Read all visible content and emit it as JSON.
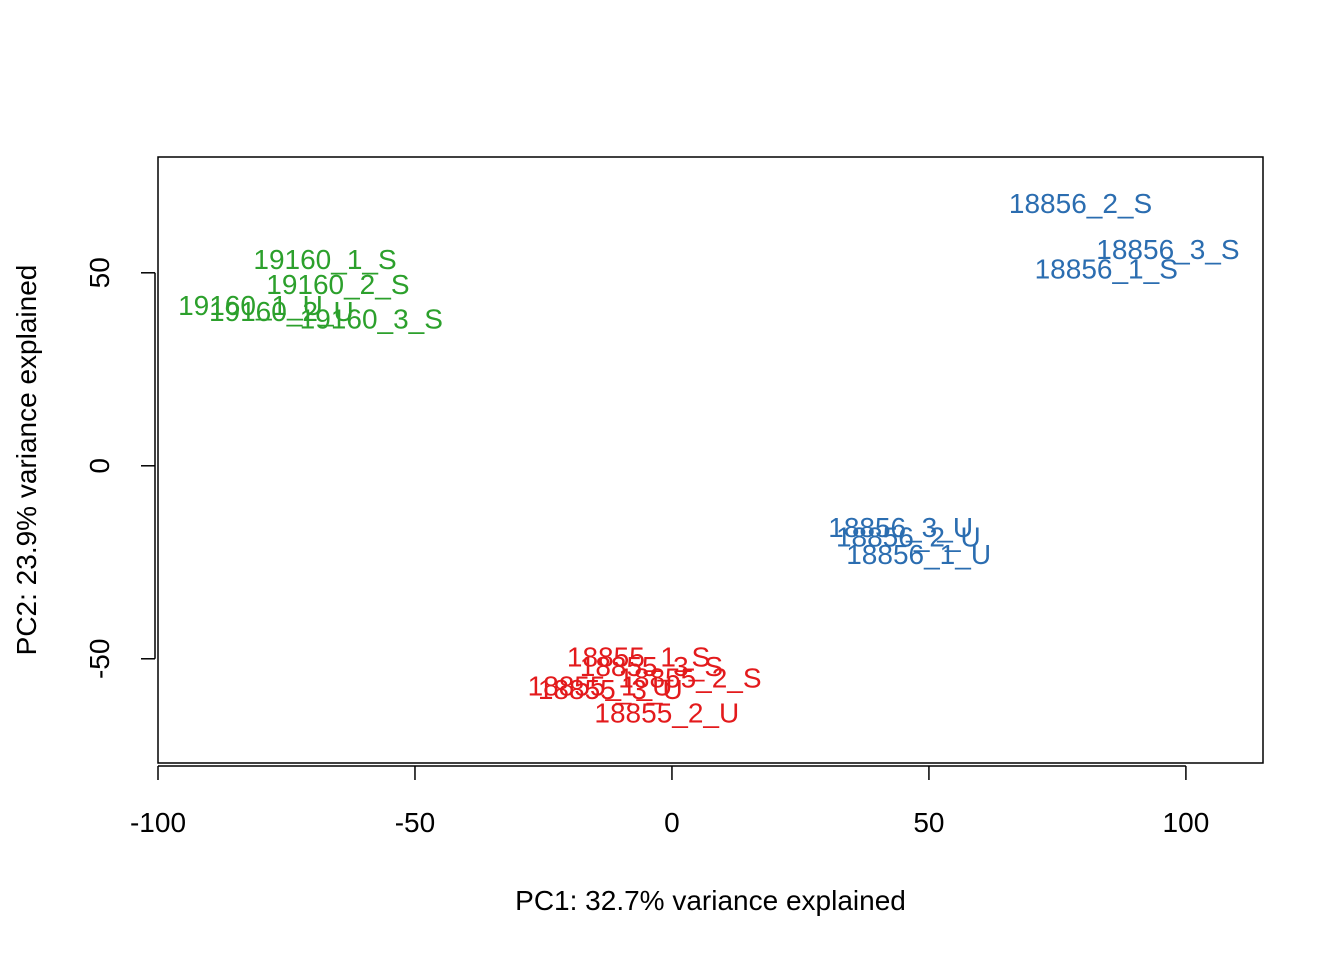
{
  "chart_data": {
    "type": "scatter",
    "title": "",
    "xlabel": "PC1: 32.7% variance explained",
    "ylabel": "PC2: 23.9% variance explained",
    "xlim": [
      -100,
      115
    ],
    "ylim": [
      -77,
      80
    ],
    "xticks": [
      -100,
      -50,
      0,
      50,
      100
    ],
    "yticks": [
      -50,
      0,
      50
    ],
    "grid": false,
    "legend": "none",
    "series": [
      {
        "color": "#2CA02C",
        "points": [
          {
            "label": "19160_1_S",
            "x": -67.5,
            "y": 53.5
          },
          {
            "label": "19160_2_S",
            "x": -65,
            "y": 47
          },
          {
            "label": "19160_1_U",
            "x": -82,
            "y": 41.5
          },
          {
            "label": "19160_2_U",
            "x": -76,
            "y": 40
          },
          {
            "label": "19160_3_S",
            "x": -58.5,
            "y": 38
          }
        ]
      },
      {
        "color": "#2B6DB0",
        "points": [
          {
            "label": "18856_2_S",
            "x": 79.5,
            "y": 68
          },
          {
            "label": "18856_3_S",
            "x": 96.5,
            "y": 56
          },
          {
            "label": "18856_1_S",
            "x": 84.5,
            "y": 51
          },
          {
            "label": "18856_3_U",
            "x": 44.5,
            "y": -16
          },
          {
            "label": "18856_2_U",
            "x": 46,
            "y": -18.5
          },
          {
            "label": "18856_1_U",
            "x": 48,
            "y": -23
          }
        ]
      },
      {
        "color": "#E31A1C",
        "points": [
          {
            "label": "18855_1_S",
            "x": -6.5,
            "y": -49.5
          },
          {
            "label": "18855_3_S",
            "x": -4,
            "y": -52
          },
          {
            "label": "18855_2_S",
            "x": 3.5,
            "y": -55
          },
          {
            "label": "18855_1_U",
            "x": -14,
            "y": -57
          },
          {
            "label": "18855_3_U",
            "x": -12,
            "y": -58
          },
          {
            "label": "18855_2_U",
            "x": -1,
            "y": -64
          }
        ]
      }
    ]
  }
}
